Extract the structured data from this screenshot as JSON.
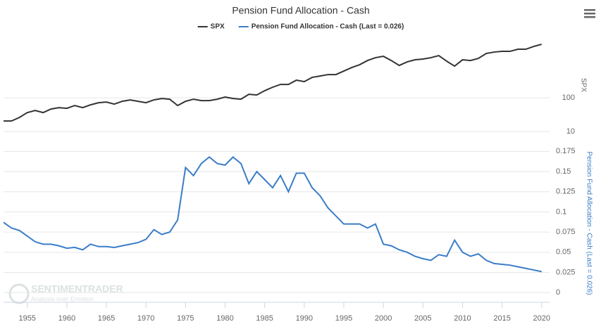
{
  "chart_data": [
    {
      "type": "line",
      "title": "Pension Fund Allocation - Cash",
      "log_scale": true,
      "grid": true,
      "y_label": "SPX",
      "x": [
        1952,
        1953,
        1954,
        1955,
        1956,
        1957,
        1958,
        1959,
        1960,
        1961,
        1962,
        1963,
        1964,
        1965,
        1966,
        1967,
        1968,
        1969,
        1970,
        1971,
        1972,
        1973,
        1974,
        1975,
        1976,
        1977,
        1978,
        1979,
        1980,
        1981,
        1982,
        1983,
        1984,
        1985,
        1986,
        1987,
        1988,
        1989,
        1990,
        1991,
        1992,
        1993,
        1994,
        1995,
        1996,
        1997,
        1998,
        1999,
        2000,
        2001,
        2002,
        2003,
        2004,
        2005,
        2006,
        2007,
        2008,
        2009,
        2010,
        2011,
        2012,
        2013,
        2014,
        2015,
        2016,
        2017,
        2018,
        2019,
        2020
      ],
      "xlim": [
        1952,
        2021
      ],
      "ylim": [
        5.4,
        10500
      ],
      "yticks": [
        10,
        100
      ],
      "series": [
        {
          "name": "SPX",
          "color": "#333333",
          "values": [
            20.5,
            20.5,
            26.1,
            36.5,
            42.2,
            36.5,
            46.4,
            51.1,
            48.7,
            59,
            51.1,
            61.9,
            71.5,
            75,
            64.9,
            78.7,
            86.6,
            78.7,
            71.5,
            86.6,
            95.3,
            90.9,
            59,
            78.7,
            90.9,
            82.5,
            82.5,
            90.9,
            105,
            95.3,
            90.9,
            127,
            121,
            162,
            205,
            249,
            249,
            332,
            301,
            402,
            442,
            487,
            487,
            619,
            787,
            953,
            1271,
            1540,
            1694,
            1271,
            908,
            1155,
            1334,
            1400,
            1540,
            1778,
            1212,
            866,
            1334,
            1271,
            1468,
            2054,
            2259,
            2371,
            2371,
            2738,
            2738,
            3319,
            3831
          ]
        }
      ]
    },
    {
      "type": "line",
      "grid": true,
      "y_label": "Pension Fund Allocation - Cash (Last = 0.026)",
      "x": [
        1952,
        1953,
        1954,
        1955,
        1956,
        1957,
        1958,
        1959,
        1960,
        1961,
        1962,
        1963,
        1964,
        1965,
        1966,
        1967,
        1968,
        1969,
        1970,
        1971,
        1972,
        1973,
        1974,
        1975,
        1976,
        1977,
        1978,
        1979,
        1980,
        1981,
        1982,
        1983,
        1984,
        1985,
        1986,
        1987,
        1988,
        1989,
        1990,
        1991,
        1992,
        1993,
        1994,
        1995,
        1996,
        1997,
        1998,
        1999,
        2000,
        2001,
        2002,
        2003,
        2004,
        2005,
        2006,
        2007,
        2008,
        2009,
        2010,
        2011,
        2012,
        2013,
        2014,
        2015,
        2016,
        2017,
        2018,
        2019,
        2020
      ],
      "xlim": [
        1952,
        2021
      ],
      "xticks": [
        1955,
        1960,
        1965,
        1970,
        1975,
        1980,
        1985,
        1990,
        1995,
        2000,
        2005,
        2010,
        2015,
        2020
      ],
      "ylim": [
        -0.012,
        0.184
      ],
      "yticks": [
        0,
        0.025,
        0.05,
        0.075,
        0.1,
        0.125,
        0.15,
        0.175
      ],
      "series": [
        {
          "name": "Pension Fund Allocation - Cash (Last = 0.026)",
          "color": "#3a7dc9",
          "values": [
            0.087,
            0.08,
            0.077,
            0.07,
            0.063,
            0.06,
            0.06,
            0.058,
            0.055,
            0.056,
            0.053,
            0.06,
            0.057,
            0.057,
            0.056,
            0.058,
            0.06,
            0.062,
            0.066,
            0.078,
            0.072,
            0.075,
            0.09,
            0.155,
            0.145,
            0.16,
            0.168,
            0.16,
            0.158,
            0.168,
            0.16,
            0.135,
            0.15,
            0.14,
            0.13,
            0.145,
            0.125,
            0.148,
            0.148,
            0.13,
            0.12,
            0.105,
            0.095,
            0.085,
            0.085,
            0.085,
            0.08,
            0.085,
            0.06,
            0.058,
            0.053,
            0.05,
            0.045,
            0.042,
            0.04,
            0.047,
            0.045,
            0.065,
            0.05,
            0.045,
            0.048,
            0.04,
            0.036,
            0.035,
            0.034,
            0.032,
            0.03,
            0.028,
            0.026
          ]
        }
      ]
    }
  ],
  "watermark": {
    "name": "SENTIMENTRADER",
    "tagline": "Analysis over Emotion"
  }
}
